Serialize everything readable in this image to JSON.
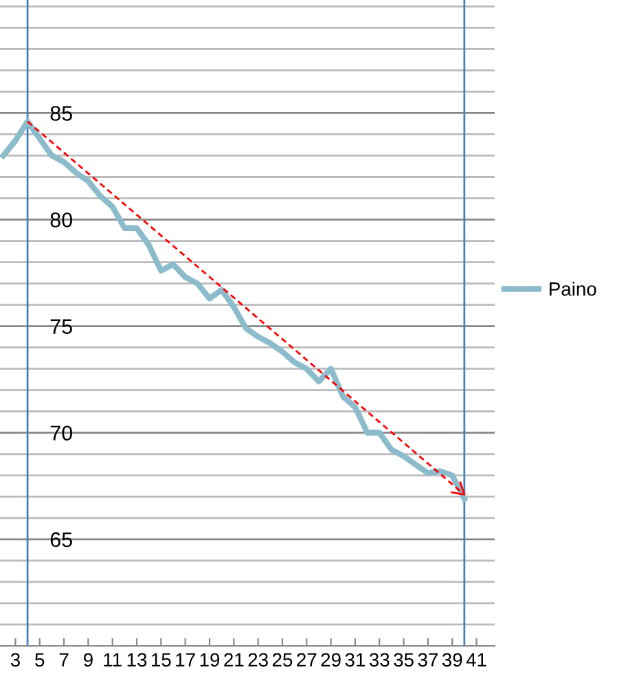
{
  "chart_data": {
    "type": "line",
    "series": [
      {
        "name": "Paino",
        "color": "#8cbccc",
        "x": [
          2,
          3,
          4,
          5,
          6,
          7,
          8,
          9,
          10,
          11,
          12,
          13,
          14,
          15,
          16,
          17,
          18,
          19,
          20,
          21,
          22,
          23,
          24,
          25,
          26,
          27,
          28,
          29,
          30,
          31,
          32,
          33,
          34,
          35,
          36,
          37,
          38,
          39,
          40
        ],
        "values": [
          83.0,
          83.7,
          84.6,
          83.8,
          83.0,
          82.7,
          82.2,
          81.8,
          81.1,
          80.6,
          79.6,
          79.6,
          78.8,
          77.6,
          77.9,
          77.3,
          77.0,
          76.3,
          76.7,
          75.9,
          74.9,
          74.5,
          74.2,
          73.8,
          73.3,
          73.0,
          72.4,
          73.0,
          71.7,
          71.2,
          70.0,
          70.0,
          69.2,
          68.9,
          68.5,
          68.1,
          68.2,
          68.0,
          66.9
        ]
      },
      {
        "type": "line",
        "color": "#ff0000",
        "line_style": "dashed",
        "x": [
          4,
          40
        ],
        "values": [
          84.6,
          67.1
        ]
      }
    ],
    "xlim": [
      1.73,
      42.5
    ],
    "xticks": [
      3,
      5,
      7,
      9,
      11,
      13,
      15,
      17,
      19,
      21,
      23,
      25,
      27,
      29,
      31,
      33,
      35,
      37,
      39,
      41
    ],
    "ylim": [
      60,
      90.3
    ],
    "yticks": [
      {
        "value": 61,
        "label": null
      },
      {
        "value": 62,
        "label": null
      },
      {
        "value": 63,
        "label": null
      },
      {
        "value": 64,
        "label": null
      },
      65,
      {
        "value": 66,
        "label": null
      },
      {
        "value": 67,
        "label": null
      },
      {
        "value": 68,
        "label": null
      },
      {
        "value": 69,
        "label": null
      },
      70,
      {
        "value": 71,
        "label": null
      },
      {
        "value": 72,
        "label": null
      },
      {
        "value": 73,
        "label": null
      },
      {
        "value": 74,
        "label": null
      },
      75,
      {
        "value": 76,
        "label": null
      },
      {
        "value": 77,
        "label": null
      },
      {
        "value": 78,
        "label": null
      },
      {
        "value": 79,
        "label": null
      },
      80,
      {
        "value": 81,
        "label": null
      },
      {
        "value": 82,
        "label": null
      },
      {
        "value": 83,
        "label": null
      },
      {
        "value": 84,
        "label": null
      },
      85,
      {
        "value": 86,
        "label": null
      },
      {
        "value": 87,
        "label": null
      },
      {
        "value": 88,
        "label": null
      },
      {
        "value": 89,
        "label": null
      },
      {
        "value": 90,
        "label": null
      }
    ],
    "grid": "y",
    "legend": "right",
    "marker": "none",
    "line_style": "solid",
    "ref_lines": [
      {
        "axis": "x",
        "value": 4,
        "color": "#4a7ebb"
      },
      {
        "axis": "x",
        "value": 40,
        "color": "#4a7ebb"
      }
    ]
  }
}
